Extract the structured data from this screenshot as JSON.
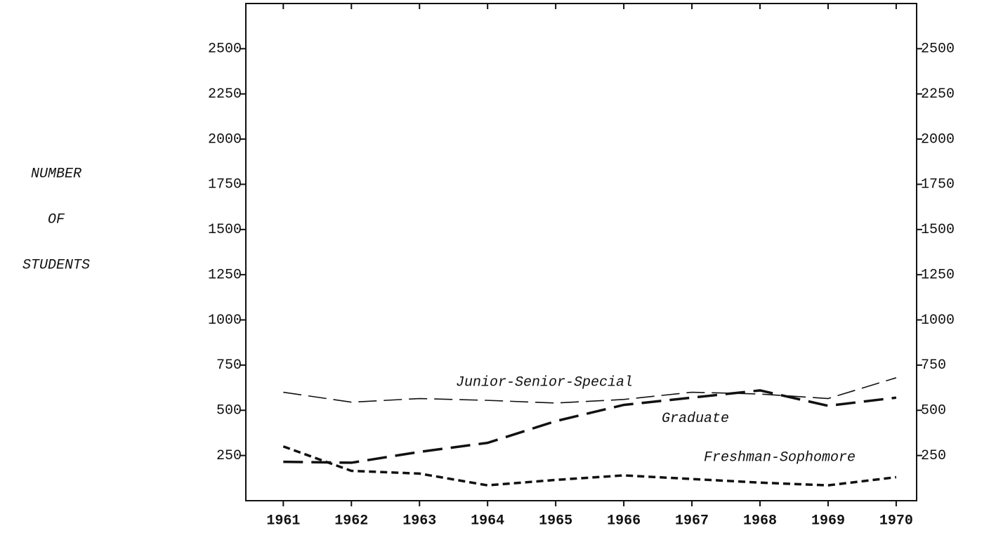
{
  "chart_data": {
    "type": "line",
    "ylabel": [
      "NUMBER",
      "OF",
      "STUDENTS"
    ],
    "x": [
      1961,
      1962,
      1963,
      1964,
      1965,
      1966,
      1967,
      1968,
      1969,
      1970
    ],
    "xlim": [
      1960.45,
      1970.3
    ],
    "xticks": [
      1961,
      1962,
      1963,
      1964,
      1965,
      1966,
      1967,
      1968,
      1969,
      1970
    ],
    "ylim": [
      0,
      2750
    ],
    "yticks": [
      250,
      500,
      750,
      1000,
      1250,
      1500,
      1750,
      2000,
      2250,
      2500
    ],
    "y2lim": [
      0,
      2750
    ],
    "y2ticks": [
      250,
      500,
      750,
      1000,
      1250,
      1500,
      1750,
      2000,
      2250,
      2500
    ],
    "series": [
      {
        "name": "Junior-Senior-Special",
        "color": "#111111",
        "values": [
          600,
          545,
          565,
          555,
          540,
          560,
          600,
          590,
          565,
          680
        ]
      },
      {
        "name": "Graduate",
        "color": "#111111",
        "values": [
          215,
          210,
          270,
          320,
          440,
          530,
          570,
          610,
          525,
          570
        ]
      },
      {
        "name": "Freshman-Sophomore",
        "color": "#111111",
        "values": [
          300,
          165,
          150,
          85,
          115,
          140,
          120,
          100,
          85,
          130
        ]
      }
    ]
  }
}
